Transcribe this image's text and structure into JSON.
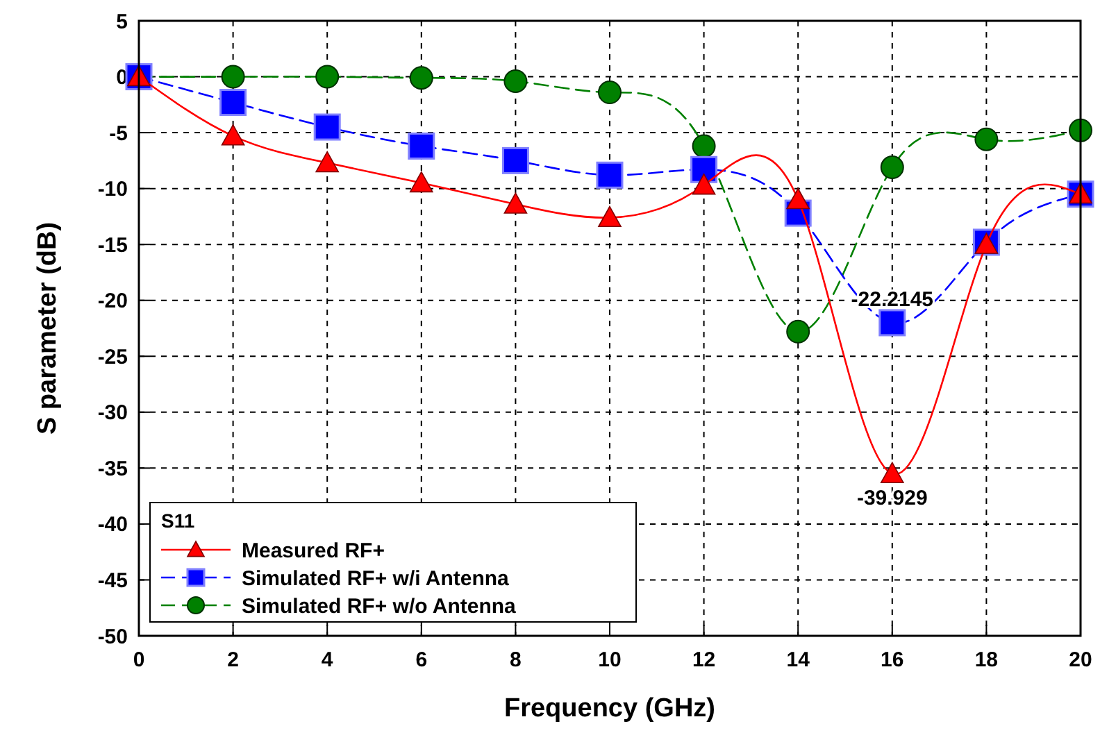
{
  "chart_data": {
    "type": "line",
    "xlabel": "Frequency (GHz)",
    "ylabel": "S parameter (dB)",
    "legend_title": "S11",
    "legend": "bottom left",
    "grid": true,
    "x": [
      0,
      2,
      4,
      6,
      8,
      10,
      12,
      14,
      16,
      18,
      20
    ],
    "xlim": [
      0,
      20
    ],
    "xticks": [
      0,
      2,
      4,
      6,
      8,
      10,
      12,
      14,
      16,
      18,
      20
    ],
    "ylim": [
      -50,
      5
    ],
    "yticks": [
      -50,
      -45,
      -40,
      -35,
      -30,
      -25,
      -20,
      -15,
      -10,
      -5,
      0,
      5
    ],
    "series": [
      {
        "name": "Measured RF+",
        "color": "#ff0000",
        "marker": "triangle",
        "line_style": "solid",
        "values": [
          0,
          -5.3,
          -7.7,
          -9.5,
          -11.4,
          -12.6,
          -9.7,
          -11,
          -35.5,
          -15,
          -10.5
        ]
      },
      {
        "name": "Simulated RF+ w/i Antenna",
        "color": "#0000ff",
        "marker": "square",
        "line_style": "dashed",
        "values": [
          0,
          -2.3,
          -4.5,
          -6.2,
          -7.5,
          -8.8,
          -8.3,
          -12.2,
          -22,
          -14.8,
          -10.5
        ]
      },
      {
        "name": "Simulated RF+ w/o Antenna",
        "color": "#008000",
        "marker": "circle",
        "line_style": "dashed",
        "values": [
          0,
          0,
          0,
          -0.1,
          -0.4,
          -1.4,
          -6.2,
          -22.8,
          -8.1,
          -5.6,
          -4.8
        ]
      }
    ],
    "annotations": [
      {
        "text": "-22.2145",
        "x": 16,
        "y": -22.2145
      },
      {
        "text": "-39.929",
        "x": 16,
        "y": -35.5
      }
    ]
  }
}
